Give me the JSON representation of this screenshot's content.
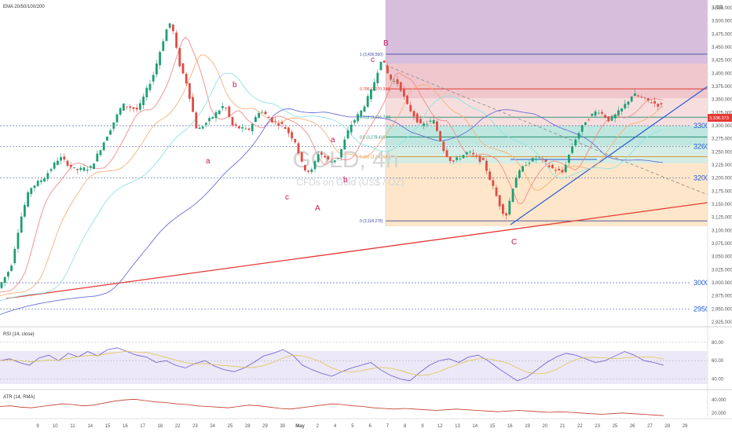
{
  "chart_data": {
    "type": "candlestick",
    "title": "GOLD, 4h",
    "subtitle": "CFDs on Gold (US$ / OZ)",
    "currency": "USD",
    "indicator_label": "EMA 20/50/100/200",
    "y_ticks": [
      "3,525.000",
      "3,500.000",
      "3,475.000",
      "3,450.000",
      "3,425.000",
      "3,400.000",
      "3,375.000",
      "3,350.000",
      "3,325.000",
      "3,300.000",
      "3,275.000",
      "3,250.000",
      "3,225.000",
      "3,200.000",
      "3,175.000",
      "3,150.000",
      "3,125.000",
      "3,100.000",
      "3,075.000",
      "3,050.000",
      "3,025.000",
      "3,000.000",
      "2,975.000",
      "2,950.000",
      "2,925.000"
    ],
    "ylim": [
      2910,
      3540
    ],
    "x_ticks": [
      "9",
      "10",
      "11",
      "14",
      "15",
      "16",
      "17",
      "18",
      "22",
      "23",
      "24",
      "25",
      "28",
      "29",
      "30",
      "May",
      "2",
      "4",
      "5",
      "6",
      "7",
      "8",
      "9",
      "12",
      "13",
      "14",
      "15",
      "16",
      "19",
      "20",
      "21",
      "22",
      "23",
      "25",
      "26",
      "27",
      "28",
      "29"
    ],
    "current_price": "3,338.373",
    "price_levels": [
      {
        "label": "3300",
        "value": 3300
      },
      {
        "label": "3260",
        "value": 3260
      },
      {
        "label": "3200",
        "value": 3200
      },
      {
        "label": "3000",
        "value": 3000
      },
      {
        "label": "2950",
        "value": 2950
      }
    ],
    "fib_levels": [
      {
        "label": "1 (3,436.550)",
        "value": 3436.55
      },
      {
        "label": "0.786 (3,370.313)",
        "value": 3370.31
      },
      {
        "label": "0.618 (3,316.209)",
        "value": 3316.21
      },
      {
        "label": "0.5 (3,278.416)",
        "value": 3278.42
      },
      {
        "label": "0.382 (3,240.622)",
        "value": 3240.62
      },
      {
        "label": "0 (3,118.278)",
        "value": 3118.28
      }
    ],
    "wave_labels": [
      "a",
      "b",
      "c",
      "A",
      "a",
      "b",
      "c",
      "B",
      "C"
    ],
    "rsi": {
      "label": "RSI (14, close)",
      "ticks": [
        "80.00",
        "60.00",
        "40.00"
      ],
      "values": [
        60,
        62,
        58,
        55,
        63,
        66,
        60,
        68,
        64,
        70,
        65,
        72,
        74,
        70,
        66,
        64,
        58,
        60,
        55,
        52,
        57,
        60,
        54,
        50,
        48,
        52,
        58,
        65,
        68,
        72,
        66,
        55,
        50,
        46,
        43,
        48,
        52,
        55,
        58,
        50,
        44,
        40,
        38,
        47,
        55,
        60,
        62,
        58,
        64,
        66,
        60,
        52,
        45,
        38,
        42,
        50,
        58,
        64,
        68,
        66,
        62,
        58,
        60,
        65,
        70,
        66,
        60,
        58,
        55
      ]
    },
    "atr": {
      "label": "ATR (14, RMA)",
      "ticks": [
        "40.000",
        "20.000"
      ],
      "values": [
        30,
        31,
        29,
        28,
        30,
        32,
        34,
        33,
        31,
        32,
        35,
        38,
        40,
        41,
        39,
        37,
        36,
        34,
        33,
        31,
        30,
        29,
        28,
        30,
        32,
        31,
        29,
        27,
        26,
        28,
        30,
        32,
        34,
        33,
        31,
        30,
        28,
        27,
        26,
        27,
        26,
        25,
        24,
        25,
        26,
        25,
        24,
        23,
        22,
        23,
        24,
        23,
        22,
        21,
        22,
        21,
        20,
        19,
        18,
        19,
        20,
        19,
        18,
        17,
        16
      ]
    }
  }
}
